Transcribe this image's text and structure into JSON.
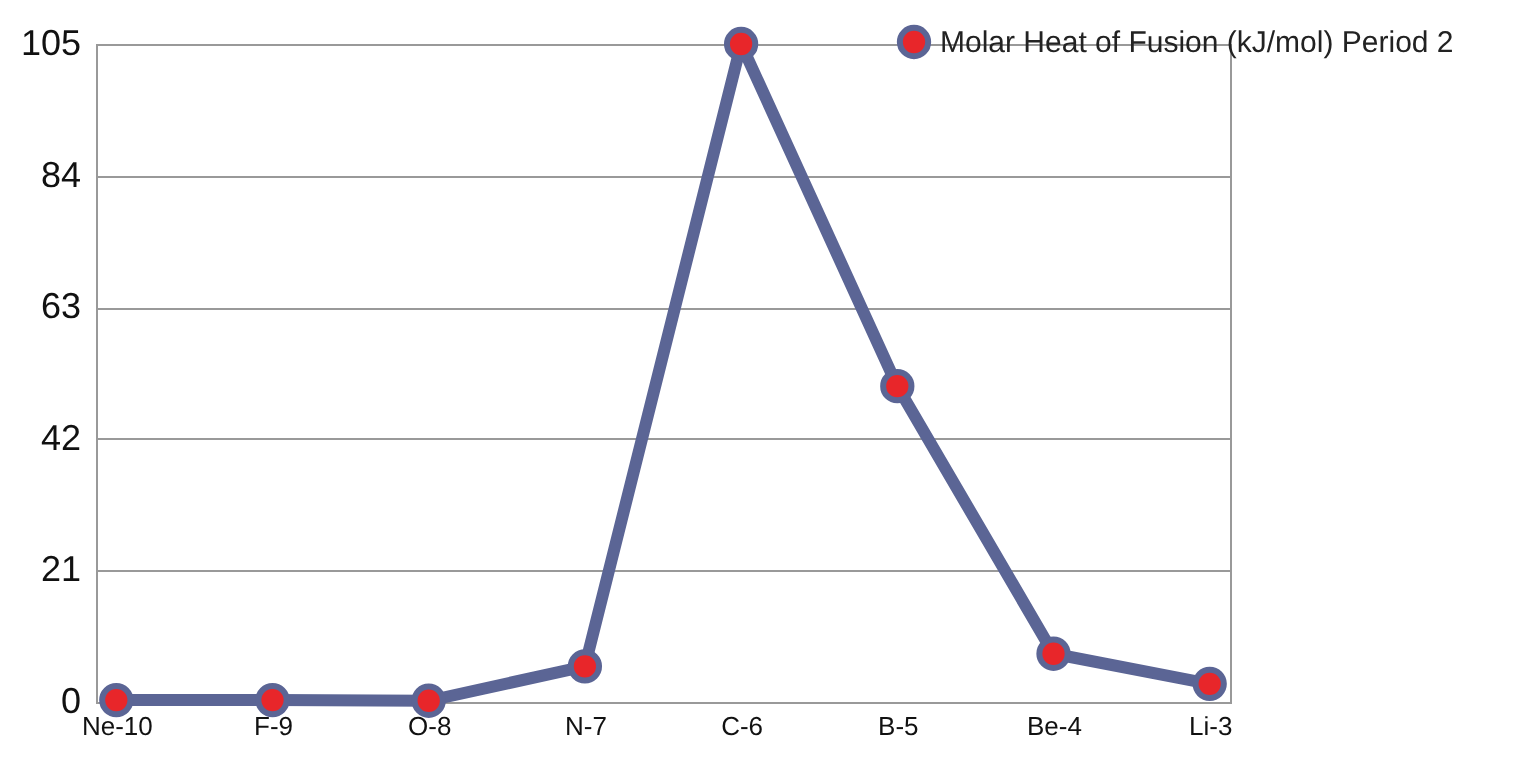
{
  "chart_data": {
    "type": "line",
    "categories": [
      "Ne-10",
      "F-9",
      "O-8",
      "N-7",
      "C-6",
      "B-5",
      "Be-4",
      "Li-3"
    ],
    "series": [
      {
        "name": "Molar Heat of Fusion (kJ/mol) Period 2",
        "color": "#5b6595",
        "values": [
          0.3,
          0.3,
          0.2,
          5.7,
          105,
          50.4,
          7.7,
          2.9
        ]
      }
    ],
    "ylim": [
      0,
      105
    ],
    "yticks": [
      0,
      21,
      42,
      63,
      84,
      105
    ],
    "grid": "y",
    "legend": "top right",
    "marker": "circle",
    "line_style": "solid"
  }
}
